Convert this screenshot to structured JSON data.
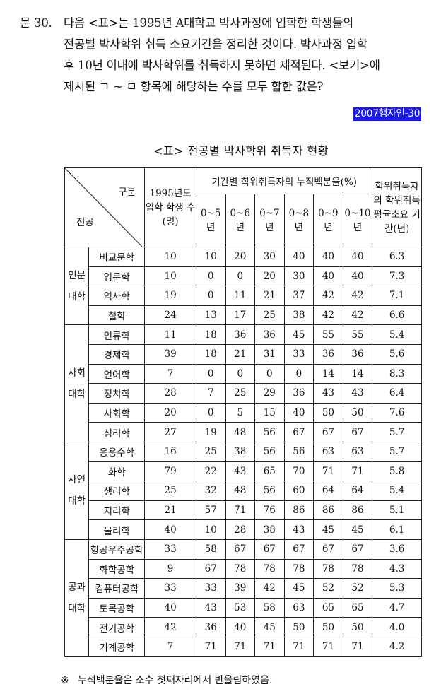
{
  "question": {
    "number": "문 30.",
    "lines": [
      "다음 <표>는 1995년 A대학교 박사과정에 입학한 학생들의",
      "전공별 박사학위 취득 소요기간을 정리한 것이다. 박사과정 입학",
      "후 10년 이내에 박사학위를 취득하지 못하면 제적된다. <보기>에",
      "제시된 ㄱ ~ ㅁ 항목에 해당하는 수를 모두 합한 값은?"
    ],
    "source_tag": "2007행자인-30"
  },
  "table": {
    "title": "<표> 전공별 박사학위 취득자 현황",
    "corner_top": "구분",
    "corner_bottom": "전공",
    "col_entrants": "1995년도 입학 학생 수(명)",
    "col_cumulative": "기간별 학위취득자의 누적백분율(%)",
    "period_headers": [
      "0~5년",
      "0~6년",
      "0~7년",
      "0~8년",
      "0~9년",
      "0~10년"
    ],
    "col_avg": "학위취득자의 학위취득 평균소요 기간(년)",
    "groups": [
      {
        "name": "인문대학",
        "rows": [
          {
            "major": "비교문학",
            "n": "10",
            "p": [
              "10",
              "20",
              "30",
              "40",
              "40",
              "40"
            ],
            "avg": "6.3"
          },
          {
            "major": "영문학",
            "n": "10",
            "p": [
              "0",
              "0",
              "20",
              "30",
              "40",
              "40"
            ],
            "avg": "7.3"
          },
          {
            "major": "역사학",
            "n": "19",
            "p": [
              "0",
              "11",
              "21",
              "37",
              "42",
              "42"
            ],
            "avg": "7.1"
          },
          {
            "major": "철학",
            "n": "24",
            "p": [
              "13",
              "17",
              "25",
              "38",
              "42",
              "42"
            ],
            "avg": "6.6"
          }
        ]
      },
      {
        "name": "사회대학",
        "rows": [
          {
            "major": "인류학",
            "n": "11",
            "p": [
              "18",
              "36",
              "36",
              "45",
              "55",
              "55"
            ],
            "avg": "5.4"
          },
          {
            "major": "경제학",
            "n": "39",
            "p": [
              "18",
              "21",
              "31",
              "33",
              "36",
              "36"
            ],
            "avg": "5.6"
          },
          {
            "major": "언어학",
            "n": "7",
            "p": [
              "0",
              "0",
              "0",
              "0",
              "14",
              "14"
            ],
            "avg": "8.3"
          },
          {
            "major": "정치학",
            "n": "28",
            "p": [
              "7",
              "25",
              "29",
              "36",
              "43",
              "43"
            ],
            "avg": "6.4"
          },
          {
            "major": "사회학",
            "n": "20",
            "p": [
              "0",
              "5",
              "15",
              "40",
              "50",
              "50"
            ],
            "avg": "7.6"
          },
          {
            "major": "심리학",
            "n": "27",
            "p": [
              "19",
              "48",
              "56",
              "67",
              "67",
              "67"
            ],
            "avg": "5.7"
          }
        ]
      },
      {
        "name": "자연대학",
        "rows": [
          {
            "major": "응용수학",
            "n": "16",
            "p": [
              "25",
              "38",
              "56",
              "56",
              "63",
              "63"
            ],
            "avg": "5.7"
          },
          {
            "major": "화학",
            "n": "79",
            "p": [
              "22",
              "43",
              "65",
              "70",
              "71",
              "71"
            ],
            "avg": "5.8"
          },
          {
            "major": "생리학",
            "n": "25",
            "p": [
              "32",
              "48",
              "56",
              "60",
              "64",
              "64"
            ],
            "avg": "5.4"
          },
          {
            "major": "지리학",
            "n": "21",
            "p": [
              "57",
              "71",
              "76",
              "86",
              "86",
              "86"
            ],
            "avg": "5.1"
          },
          {
            "major": "물리학",
            "n": "40",
            "p": [
              "10",
              "28",
              "38",
              "43",
              "45",
              "45"
            ],
            "avg": "6.1"
          }
        ]
      },
      {
        "name": "공과대학",
        "rows": [
          {
            "major": "항공우주공학",
            "n": "33",
            "p": [
              "58",
              "67",
              "67",
              "67",
              "67",
              "67"
            ],
            "avg": "3.6"
          },
          {
            "major": "화학공학",
            "n": "9",
            "p": [
              "67",
              "78",
              "78",
              "78",
              "78",
              "78"
            ],
            "avg": "4.3"
          },
          {
            "major": "컴퓨터공학",
            "n": "33",
            "p": [
              "33",
              "39",
              "42",
              "45",
              "52",
              "52"
            ],
            "avg": "5.3"
          },
          {
            "major": "토목공학",
            "n": "40",
            "p": [
              "43",
              "53",
              "58",
              "63",
              "65",
              "65"
            ],
            "avg": "4.7"
          },
          {
            "major": "전기공학",
            "n": "42",
            "p": [
              "36",
              "40",
              "45",
              "50",
              "50",
              "50"
            ],
            "avg": "4.0"
          },
          {
            "major": "기계공학",
            "n": "7",
            "p": [
              "71",
              "71",
              "71",
              "71",
              "71",
              "71"
            ],
            "avg": "4.2"
          }
        ]
      }
    ]
  },
  "note": {
    "mark": "※",
    "text": "누적백분율은 소수 첫째자리에서 반올림하였음."
  }
}
